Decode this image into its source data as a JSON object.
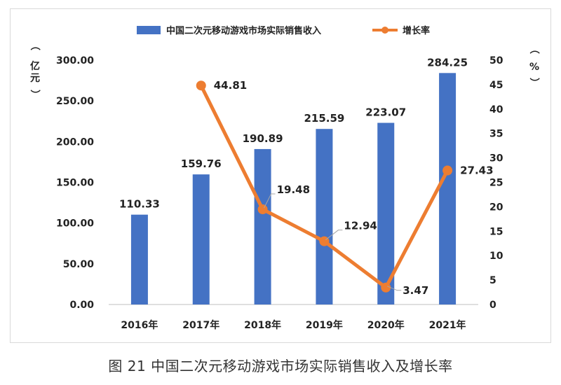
{
  "caption": "图 21 中国二次元移动游戏市场实际销售收入及增长率",
  "chart_data": {
    "type": "bar",
    "categories": [
      "2016年",
      "2017年",
      "2018年",
      "2019年",
      "2020年",
      "2021年"
    ],
    "series": [
      {
        "name": "中国二次元移动游戏市场实际销售收入",
        "type": "bar",
        "axis": "left",
        "color": "#4472C4",
        "values": [
          110.33,
          159.76,
          190.89,
          215.59,
          223.07,
          284.25
        ],
        "labels": [
          "110.33",
          "159.76",
          "190.89",
          "215.59",
          "223.07",
          "284.25"
        ]
      },
      {
        "name": "增长率",
        "type": "line",
        "axis": "right",
        "color": "#ED7D31",
        "values": [
          null,
          44.81,
          19.48,
          12.94,
          3.47,
          27.43
        ],
        "labels": [
          "",
          "44.81",
          "19.48",
          "12.94",
          "3.47",
          "27.43"
        ]
      }
    ],
    "y_left": {
      "label": [
        "（",
        "亿",
        "元",
        "）"
      ],
      "range": [
        0,
        300
      ],
      "ticks": [
        "0.00",
        "50.00",
        "100.00",
        "150.00",
        "200.00",
        "250.00",
        "300.00"
      ]
    },
    "y_right": {
      "label": [
        "（",
        "%",
        "）"
      ],
      "range": [
        0,
        50
      ],
      "ticks": [
        "0",
        "5",
        "10",
        "15",
        "20",
        "25",
        "30",
        "35",
        "40",
        "45",
        "50"
      ]
    },
    "grid": false,
    "legend": "top-center"
  }
}
